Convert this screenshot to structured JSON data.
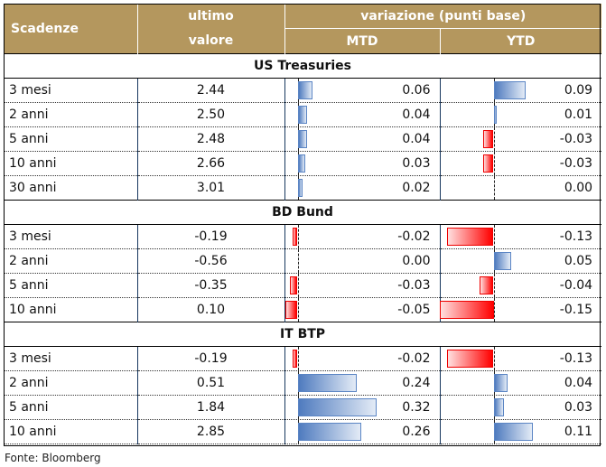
{
  "header": {
    "scadenze": "Scadenze",
    "ultimo_1": "ultimo",
    "ultimo_2": "valore",
    "variazione": "variazione (punti base)",
    "mtd": "MTD",
    "ytd": "YTD"
  },
  "sections": [
    {
      "title": "US Treasuries",
      "rows": [
        {
          "label": "3 mesi",
          "value": "2.44",
          "mtd": 0.06,
          "mtd_text": "0.06",
          "ytd": 0.09,
          "ytd_text": "0.09"
        },
        {
          "label": "2 anni",
          "value": "2.50",
          "mtd": 0.04,
          "mtd_text": "0.04",
          "ytd": 0.01,
          "ytd_text": "0.01"
        },
        {
          "label": "5 anni",
          "value": "2.48",
          "mtd": 0.04,
          "mtd_text": "0.04",
          "ytd": -0.03,
          "ytd_text": "-0.03"
        },
        {
          "label": "10 anni",
          "value": "2.66",
          "mtd": 0.03,
          "mtd_text": "0.03",
          "ytd": -0.03,
          "ytd_text": "-0.03"
        },
        {
          "label": "30 anni",
          "value": "3.01",
          "mtd": 0.02,
          "mtd_text": "0.02",
          "ytd": 0.0,
          "ytd_text": "0.00"
        }
      ]
    },
    {
      "title": "BD Bund",
      "rows": [
        {
          "label": "3 mesi",
          "value": "-0.19",
          "mtd": -0.02,
          "mtd_text": "-0.02",
          "ytd": -0.13,
          "ytd_text": "-0.13"
        },
        {
          "label": "2 anni",
          "value": "-0.56",
          "mtd": 0.0,
          "mtd_text": "0.00",
          "ytd": 0.05,
          "ytd_text": "0.05"
        },
        {
          "label": "5 anni",
          "value": "-0.35",
          "mtd": -0.03,
          "mtd_text": "-0.03",
          "ytd": -0.04,
          "ytd_text": "-0.04"
        },
        {
          "label": "10 anni",
          "value": "0.10",
          "mtd": -0.05,
          "mtd_text": "-0.05",
          "ytd": -0.15,
          "ytd_text": "-0.15"
        }
      ]
    },
    {
      "title": "IT BTP",
      "rows": [
        {
          "label": "3 mesi",
          "value": "-0.19",
          "mtd": -0.02,
          "mtd_text": "-0.02",
          "ytd": -0.13,
          "ytd_text": "-0.13"
        },
        {
          "label": "2 anni",
          "value": "0.51",
          "mtd": 0.24,
          "mtd_text": "0.24",
          "ytd": 0.04,
          "ytd_text": "0.04"
        },
        {
          "label": "5 anni",
          "value": "1.84",
          "mtd": 0.32,
          "mtd_text": "0.32",
          "ytd": 0.03,
          "ytd_text": "0.03"
        },
        {
          "label": "10 anni",
          "value": "2.85",
          "mtd": 0.26,
          "mtd_text": "0.26",
          "ytd": 0.11,
          "ytd_text": "0.11"
        }
      ]
    }
  ],
  "source": "Fonte: Bloomberg",
  "colors": {
    "header": "#b4975e",
    "positive": "#4f7bbf",
    "negative": "#ff0000"
  }
}
